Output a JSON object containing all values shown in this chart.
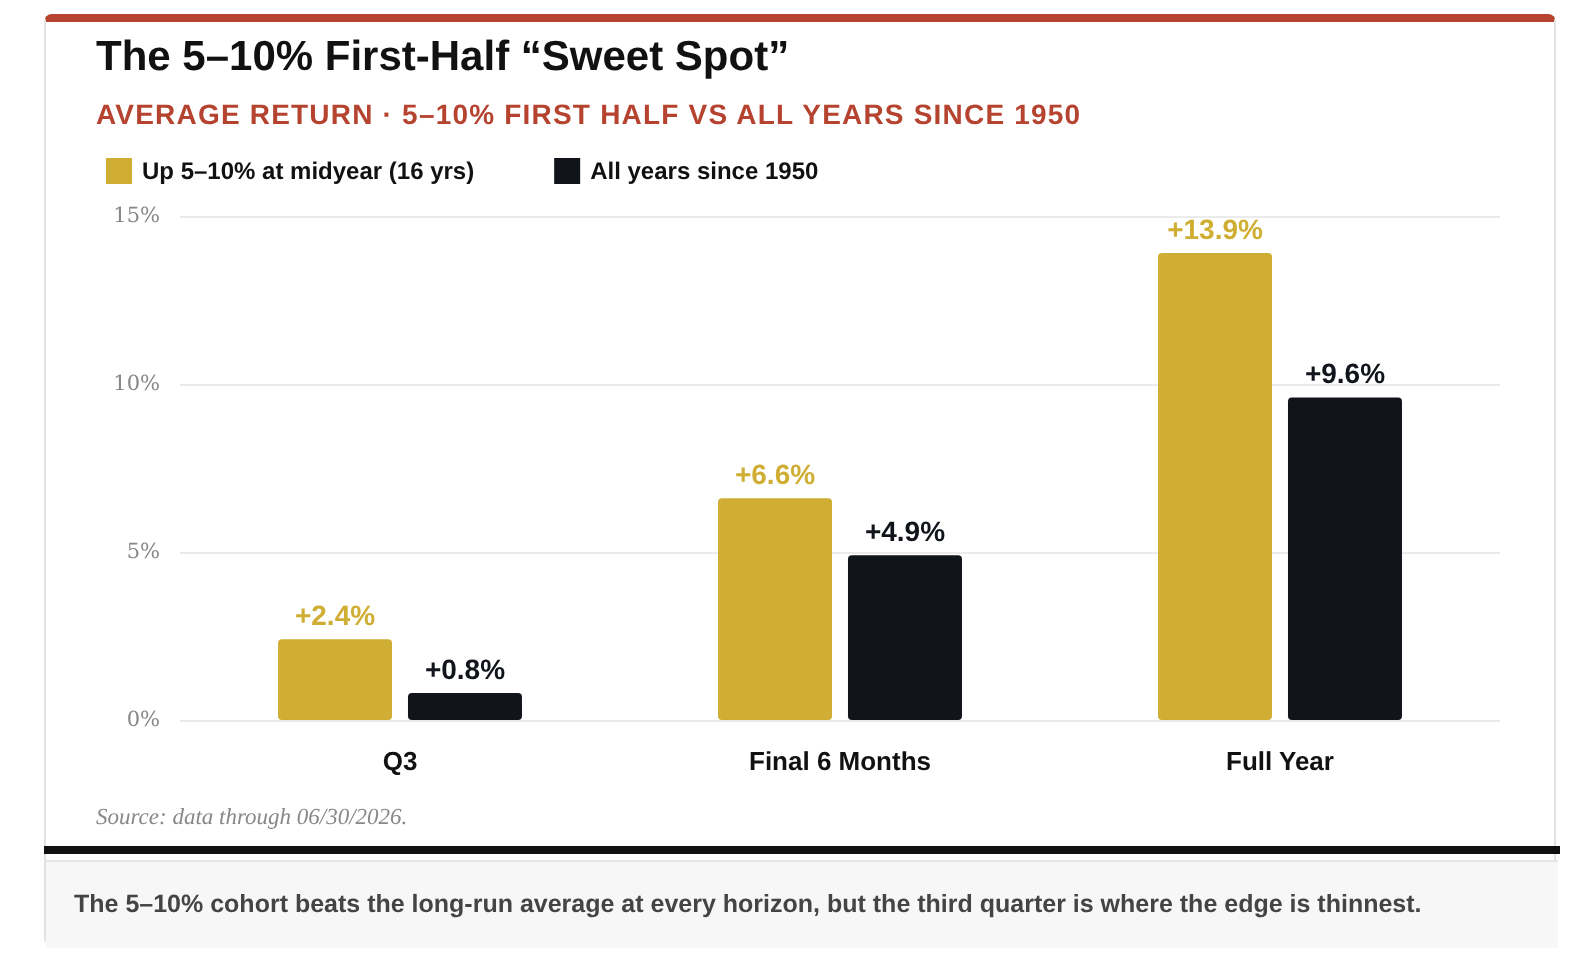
{
  "chart_data": {
    "type": "bar",
    "title": "The 5–10% First-Half “Sweet Spot”",
    "subtitle": "AVERAGE RETURN · 5–10% FIRST HALF VS ALL YEARS SINCE 1950",
    "categories": [
      "Q3",
      "Final 6 Months",
      "Full Year"
    ],
    "series": [
      {
        "name": "Up 5–10% at midyear (16 yrs)",
        "color": "#cfae33",
        "values": [
          2.4,
          6.6,
          13.9
        ],
        "value_labels": [
          "+2.4%",
          "+6.6%",
          "+13.9%"
        ]
      },
      {
        "name": "All years since 1950",
        "color": "#11141b",
        "values": [
          0.8,
          4.9,
          9.6
        ],
        "value_labels": [
          "+0.8%",
          "+4.9%",
          "+9.6%"
        ]
      }
    ],
    "ylim": [
      0,
      15
    ],
    "yticks": [
      {
        "value": 0,
        "label": "0%"
      },
      {
        "value": 5,
        "label": "5%"
      },
      {
        "value": 10,
        "label": "10%"
      },
      {
        "value": 15,
        "label": "15%"
      }
    ],
    "grid": "y",
    "legend": "top left",
    "annotations": [
      "Source: data through 06/30/2026.",
      "The 5–10% cohort beats the long-run average at every horizon, but the third quarter is where the edge is thinnest."
    ]
  }
}
